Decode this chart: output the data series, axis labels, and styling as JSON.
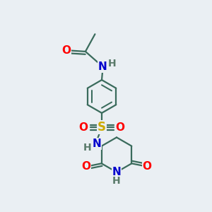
{
  "bg_color": "#eaeff3",
  "bond_color": "#3a6b5c",
  "atom_colors": {
    "O": "#ff0000",
    "N": "#0000cc",
    "S": "#ccaa00",
    "H": "#5a7a6a",
    "C": "#3a6b5c"
  },
  "font_size_atoms": 11,
  "font_size_H": 10,
  "line_width": 1.6
}
